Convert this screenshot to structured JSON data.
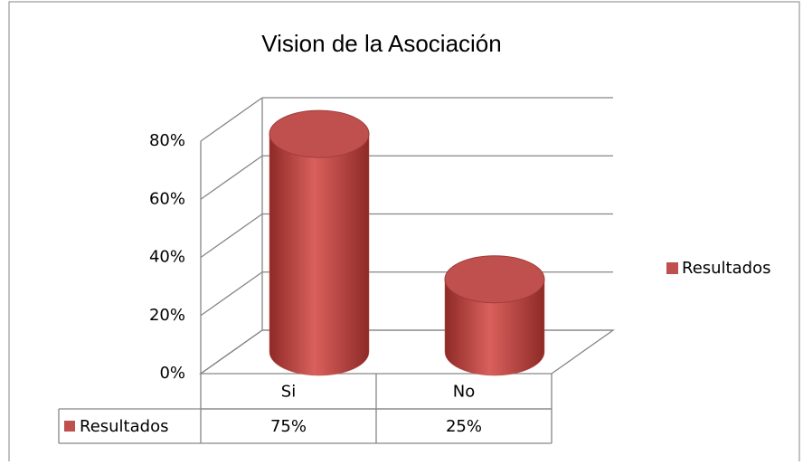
{
  "chart_data": {
    "type": "bar3d",
    "title": "Vision de la Asociación",
    "categories": [
      "Si",
      "No"
    ],
    "series": [
      {
        "name": "Resultados",
        "color": "#c0504d",
        "values": [
          75,
          25
        ],
        "value_labels": [
          "75%",
          "25%"
        ]
      }
    ],
    "ylim": [
      0,
      80
    ],
    "yticks": [
      {
        "value": 0,
        "label": "0%"
      },
      {
        "value": 20,
        "label": "20%"
      },
      {
        "value": 40,
        "label": "40%"
      },
      {
        "value": 60,
        "label": "60%"
      },
      {
        "value": 80,
        "label": "80%"
      }
    ],
    "grid": true,
    "legend": "right",
    "data_table": true
  }
}
